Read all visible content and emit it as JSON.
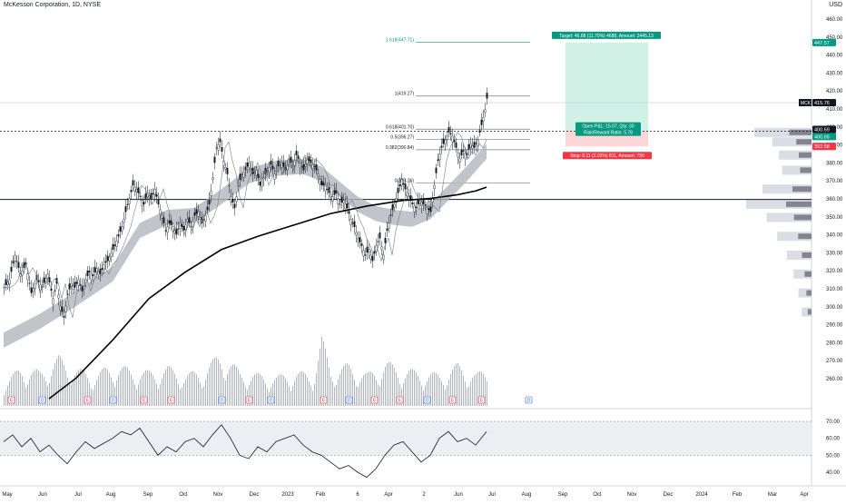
{
  "header": {
    "symbol_title": "McKesson Corporation, 1D, NYSE",
    "currency": "USD"
  },
  "colors": {
    "up": "#131722",
    "down": "#131722",
    "sma200": "#000000",
    "ribbon": "#b2b5be",
    "target_fill": "#d1f0e6",
    "stop_fill": "#fbd7d7",
    "target_label": "#089981",
    "stop_label": "#f23645",
    "rsi_band": "#eceef2"
  },
  "price_axis": {
    "ticks": [
      "460.00",
      "450.00",
      "440.00",
      "430.00",
      "420.00",
      "410.00",
      "400.00",
      "390.00",
      "380.00",
      "370.00",
      "360.00",
      "350.00",
      "340.00",
      "330.00",
      "320.00",
      "310.00",
      "300.00",
      "290.00",
      "280.00",
      "270.00",
      "260.00"
    ]
  },
  "rsi_axis": {
    "ticks": [
      "70.00",
      "60.00",
      "50.00",
      "40.00"
    ]
  },
  "time_axis": {
    "labels": [
      "May",
      "Jun",
      "Jul",
      "Aug",
      "Sep",
      "Oct",
      "Nov",
      "Dec",
      "2023",
      "Feb",
      "6",
      "Apr",
      "2",
      "Jun",
      "Jul",
      "Aug",
      "Sep",
      "Oct",
      "Nov",
      "Dec",
      "2024",
      "Feb",
      "Mar",
      "Apr"
    ]
  },
  "badges": {
    "symbol": "MCK",
    "last_price": "415.76",
    "target_price": "447.57",
    "level_400": "400.69",
    "level_400b": "400.69",
    "stop_price": "392.58"
  },
  "position": {
    "target_label": "Target: 46.88 (11.70%) 4688, Amount: 2445.13",
    "open_label_1": "Open P&L: 15.07, Qty: 30",
    "open_label_2": "Risk/Reward Ratio: 5.78",
    "stop_label": "Stop: 8.11 (2.02%) 811, Amount: 750"
  },
  "fib_levels": [
    {
      "label": "1.618(447.71)",
      "price": 447.71
    },
    {
      "label": "1(419.27)",
      "price": 419.27
    },
    {
      "label": "0.618(401.70)",
      "price": 401.7
    },
    {
      "label": "0.5(396.27)",
      "price": 396.27
    },
    {
      "label": "0.382(390.84)",
      "price": 390.84
    },
    {
      "label": "0(373.26)",
      "price": 373.26
    }
  ],
  "event_markers": [
    "E",
    "D",
    "E",
    "D",
    "E",
    "E",
    "D",
    "E",
    "D",
    "E",
    "D",
    "E",
    "E",
    "D",
    "E",
    "E",
    "D",
    "E"
  ],
  "chart_data": {
    "type": "candlestick",
    "price_ylim": [
      255,
      470
    ],
    "rsi_ylim": [
      35,
      72
    ],
    "rsi_levels": [
      70,
      50
    ],
    "horizontal_levels": [
      400.69,
      364.5
    ],
    "price_path": [
      [
        0,
        318
      ],
      [
        6,
        322
      ],
      [
        12,
        335
      ],
      [
        18,
        325
      ],
      [
        24,
        330
      ],
      [
        30,
        315
      ],
      [
        36,
        322
      ],
      [
        42,
        318
      ],
      [
        48,
        325
      ],
      [
        54,
        312
      ],
      [
        58,
        320
      ],
      [
        62,
        308
      ],
      [
        66,
        302
      ],
      [
        70,
        314
      ],
      [
        74,
        320
      ],
      [
        78,
        318
      ],
      [
        82,
        322
      ],
      [
        86,
        316
      ],
      [
        90,
        322
      ],
      [
        94,
        326
      ],
      [
        98,
        324
      ],
      [
        102,
        328
      ],
      [
        106,
        325
      ],
      [
        110,
        330
      ],
      [
        114,
        332
      ],
      [
        118,
        336
      ],
      [
        122,
        340
      ],
      [
        126,
        345
      ],
      [
        130,
        350
      ],
      [
        134,
        358
      ],
      [
        138,
        365
      ],
      [
        142,
        372
      ],
      [
        146,
        370
      ],
      [
        150,
        366
      ],
      [
        154,
        362
      ],
      [
        158,
        368
      ],
      [
        162,
        365
      ],
      [
        166,
        370
      ],
      [
        170,
        362
      ],
      [
        174,
        356
      ],
      [
        178,
        348
      ],
      [
        182,
        352
      ],
      [
        186,
        350
      ],
      [
        190,
        346
      ],
      [
        194,
        352
      ],
      [
        198,
        348
      ],
      [
        202,
        354
      ],
      [
        206,
        350
      ],
      [
        210,
        356
      ],
      [
        214,
        358
      ],
      [
        218,
        352
      ],
      [
        222,
        356
      ],
      [
        226,
        362
      ],
      [
        230,
        376
      ],
      [
        234,
        392
      ],
      [
        238,
        395
      ],
      [
        242,
        385
      ],
      [
        246,
        378
      ],
      [
        250,
        366
      ],
      [
        254,
        360
      ],
      [
        258,
        372
      ],
      [
        262,
        378
      ],
      [
        266,
        380
      ],
      [
        270,
        384
      ],
      [
        274,
        378
      ],
      [
        278,
        380
      ],
      [
        282,
        372
      ],
      [
        286,
        376
      ],
      [
        290,
        380
      ],
      [
        294,
        383
      ],
      [
        298,
        378
      ],
      [
        302,
        382
      ],
      [
        306,
        384
      ],
      [
        310,
        380
      ],
      [
        314,
        386
      ],
      [
        318,
        382
      ],
      [
        322,
        388
      ],
      [
        326,
        384
      ],
      [
        330,
        380
      ],
      [
        334,
        386
      ],
      [
        338,
        384
      ],
      [
        342,
        382
      ],
      [
        346,
        378
      ],
      [
        350,
        372
      ],
      [
        354,
        372
      ],
      [
        358,
        368
      ],
      [
        362,
        366
      ],
      [
        366,
        368
      ],
      [
        370,
        362
      ],
      [
        374,
        364
      ],
      [
        378,
        360
      ],
      [
        382,
        354
      ],
      [
        386,
        350
      ],
      [
        390,
        344
      ],
      [
        394,
        340
      ],
      [
        398,
        335
      ],
      [
        402,
        338
      ],
      [
        406,
        332
      ],
      [
        410,
        340
      ],
      [
        414,
        344
      ],
      [
        418,
        335
      ],
      [
        422,
        348
      ],
      [
        426,
        356
      ],
      [
        430,
        362
      ],
      [
        434,
        368
      ],
      [
        438,
        375
      ],
      [
        442,
        370
      ],
      [
        446,
        366
      ],
      [
        450,
        362
      ],
      [
        454,
        360
      ],
      [
        458,
        364
      ],
      [
        462,
        362
      ],
      [
        466,
        360
      ],
      [
        470,
        358
      ],
      [
        474,
        372
      ],
      [
        478,
        385
      ],
      [
        482,
        392
      ],
      [
        486,
        396
      ],
      [
        490,
        400
      ],
      [
        494,
        398
      ],
      [
        498,
        392
      ],
      [
        502,
        386
      ],
      [
        506,
        390
      ],
      [
        510,
        388
      ],
      [
        514,
        394
      ],
      [
        518,
        392
      ],
      [
        522,
        396
      ],
      [
        526,
        404
      ],
      [
        530,
        412
      ],
      [
        532,
        418
      ]
    ],
    "sma200_path": [
      [
        50,
        259
      ],
      [
        80,
        270
      ],
      [
        120,
        290
      ],
      [
        160,
        312
      ],
      [
        200,
        326
      ],
      [
        240,
        338
      ],
      [
        280,
        345
      ],
      [
        320,
        351
      ],
      [
        360,
        357
      ],
      [
        400,
        361
      ],
      [
        440,
        364
      ],
      [
        470,
        365
      ],
      [
        500,
        367
      ],
      [
        520,
        369
      ],
      [
        532,
        371
      ]
    ],
    "ribbon_path": [
      [
        0,
        290
      ],
      [
        40,
        300
      ],
      [
        80,
        312
      ],
      [
        120,
        325
      ],
      [
        150,
        348
      ],
      [
        180,
        355
      ],
      [
        210,
        356
      ],
      [
        240,
        366
      ],
      [
        270,
        377
      ],
      [
        300,
        381
      ],
      [
        330,
        382
      ],
      [
        350,
        378
      ],
      [
        370,
        370
      ],
      [
        390,
        362
      ],
      [
        410,
        357
      ],
      [
        430,
        355
      ],
      [
        450,
        354
      ],
      [
        470,
        358
      ],
      [
        490,
        368
      ],
      [
        510,
        378
      ],
      [
        532,
        390
      ]
    ],
    "volume_path": [
      [
        0,
        20
      ],
      [
        20,
        32
      ],
      [
        40,
        28
      ],
      [
        60,
        40
      ],
      [
        80,
        30
      ],
      [
        100,
        26
      ],
      [
        120,
        34
      ],
      [
        140,
        30
      ],
      [
        160,
        28
      ],
      [
        180,
        32
      ],
      [
        200,
        26
      ],
      [
        220,
        30
      ],
      [
        240,
        44
      ],
      [
        260,
        28
      ],
      [
        280,
        26
      ],
      [
        300,
        24
      ],
      [
        320,
        28
      ],
      [
        340,
        26
      ],
      [
        350,
        56
      ],
      [
        360,
        30
      ],
      [
        380,
        34
      ],
      [
        400,
        26
      ],
      [
        420,
        36
      ],
      [
        440,
        30
      ],
      [
        460,
        28
      ],
      [
        480,
        26
      ],
      [
        500,
        34
      ],
      [
        520,
        26
      ],
      [
        532,
        30
      ]
    ],
    "rsi_path": [
      [
        0,
        58
      ],
      [
        10,
        62
      ],
      [
        20,
        55
      ],
      [
        30,
        60
      ],
      [
        40,
        52
      ],
      [
        50,
        56
      ],
      [
        60,
        50
      ],
      [
        70,
        45
      ],
      [
        80,
        52
      ],
      [
        90,
        58
      ],
      [
        100,
        54
      ],
      [
        110,
        57
      ],
      [
        120,
        60
      ],
      [
        130,
        64
      ],
      [
        140,
        62
      ],
      [
        150,
        66
      ],
      [
        160,
        58
      ],
      [
        170,
        50
      ],
      [
        180,
        55
      ],
      [
        190,
        52
      ],
      [
        200,
        58
      ],
      [
        210,
        60
      ],
      [
        220,
        55
      ],
      [
        230,
        62
      ],
      [
        240,
        68
      ],
      [
        250,
        60
      ],
      [
        260,
        50
      ],
      [
        270,
        48
      ],
      [
        280,
        55
      ],
      [
        290,
        52
      ],
      [
        300,
        58
      ],
      [
        310,
        60
      ],
      [
        320,
        62
      ],
      [
        330,
        56
      ],
      [
        340,
        52
      ],
      [
        350,
        50
      ],
      [
        360,
        46
      ],
      [
        370,
        42
      ],
      [
        380,
        44
      ],
      [
        390,
        40
      ],
      [
        400,
        37
      ],
      [
        410,
        42
      ],
      [
        420,
        50
      ],
      [
        430,
        56
      ],
      [
        440,
        58
      ],
      [
        450,
        52
      ],
      [
        460,
        46
      ],
      [
        470,
        50
      ],
      [
        480,
        60
      ],
      [
        490,
        64
      ],
      [
        500,
        58
      ],
      [
        510,
        60
      ],
      [
        520,
        56
      ],
      [
        532,
        64
      ]
    ]
  }
}
